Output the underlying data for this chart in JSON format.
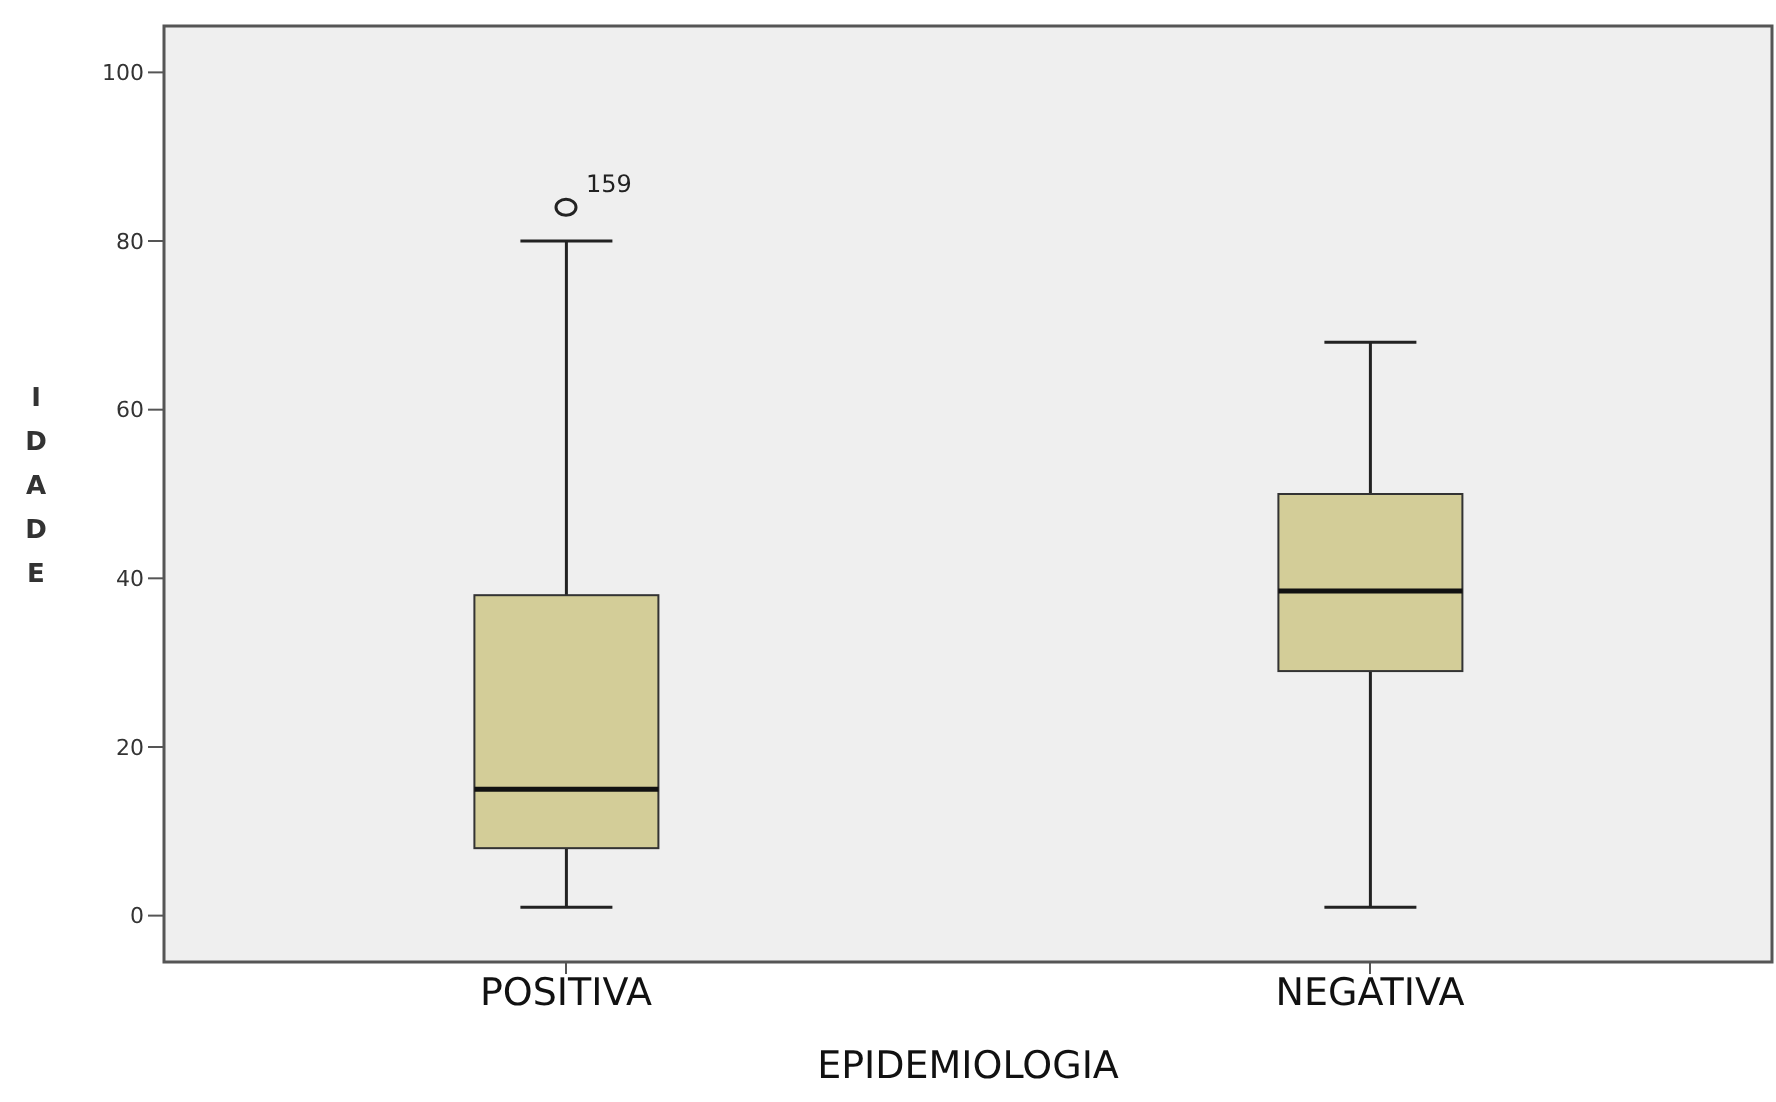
{
  "chart_data": {
    "type": "box",
    "xlabel": "EPIDEMIOLOGIA",
    "ylabel": "IDADE",
    "categories": [
      "POSITIVA",
      "NEGATIVA"
    ],
    "color": "#d3cd98",
    "boxes": [
      {
        "low": 1,
        "q1": 8,
        "median": 15,
        "q3": 38,
        "high": 80,
        "outliers": [
          84
        ]
      },
      {
        "low": 1,
        "q1": 29,
        "median": 38.5,
        "q3": 50,
        "high": 68
      }
    ],
    "ylim": [
      -5.5,
      105.5
    ],
    "yticks": [
      0,
      20,
      40,
      60,
      80,
      100
    ],
    "annotations": [
      "159"
    ]
  }
}
